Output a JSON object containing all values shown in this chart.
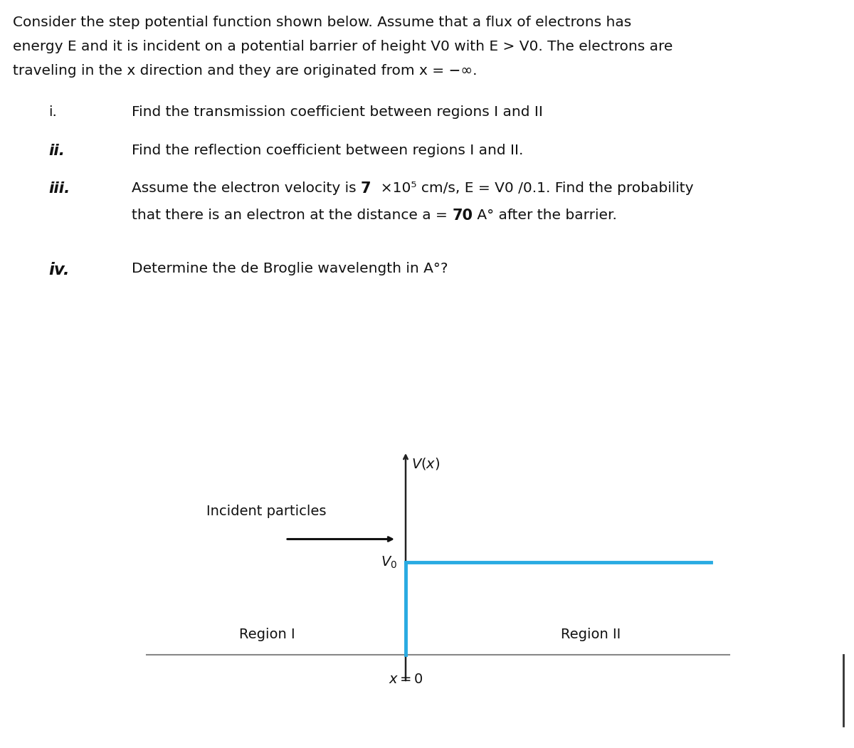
{
  "bg_color": "#ffffff",
  "fig_width": 12.0,
  "fig_height": 10.51,
  "header_line1": "Consider the step potential function shown below. Assume that a flux of electrons has",
  "header_line2": "energy E and it is incident on a potential barrier of height V0 with E > V0. The electrons are",
  "header_line3": "traveling in the x direction and they are originated from x = −∞.",
  "item_i_label": "i.",
  "item_i_text": "Find the transmission coefficient between regions I and II",
  "item_ii_label": "ii.",
  "item_ii_text": "Find the reflection coefficient between regions I and II.",
  "item_iii_label": "iii.",
  "item_iii_text1": "Assume the electron velocity is ",
  "item_iii_bold": "7",
  "item_iii_text2": "  ×10⁵ cm/s, E = V0 /0.1. Find the probability",
  "item_iii_line2a": "that there is an electron at the distance a = ",
  "item_iii_bold2": "70",
  "item_iii_line2b": " A° after the barrier.",
  "item_iv_label": "iv.",
  "item_iv_text": "Determine the de Broglie wavelength in A°?",
  "diagram": {
    "step_color": "#29ABE2",
    "step_linewidth": 3.5,
    "axis_color": "#222222",
    "baseline_color": "#888888",
    "baseline_linewidth": 1.5,
    "V0_label": "$V_0$",
    "Vx_label": "$V(x)$",
    "x0_label": "$x = 0$",
    "region1_label": "Region I",
    "region2_label": "Region II",
    "incident_label": "Incident particles",
    "arrow_color": "#111111"
  }
}
